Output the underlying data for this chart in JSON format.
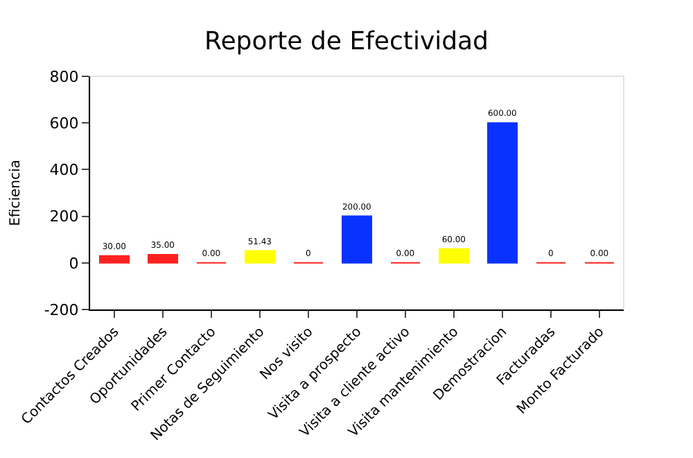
{
  "chart_data": {
    "type": "bar",
    "title": "Reporte de Efectividad",
    "ylabel": "Eficiencia",
    "categories": [
      "Contactos Creados",
      "Oportunidades",
      "Primer Contacto",
      "Notas de Seguimiento",
      "Nos visito",
      "Visita a prospecto",
      "Visita a cliente activo",
      "Visita mantenimiento",
      "Demostracion",
      "Facturadas",
      "Monto Facturado"
    ],
    "values": [
      30,
      35,
      0,
      51.43,
      0,
      200,
      0,
      60,
      600,
      0,
      0
    ],
    "colors": [
      "#ff2020",
      "#ff2020",
      "#ff2020",
      "#ffff00",
      "#ff2020",
      "#0a32ff",
      "#ff2020",
      "#ffff00",
      "#0a32ff",
      "#ff2020",
      "#ff2020"
    ],
    "value_labels": [
      "30.00",
      "35.00",
      "0.00",
      "51.43",
      "0",
      "200.00",
      "0.00",
      "60.00",
      "600.00",
      "0",
      "0.00"
    ],
    "ylim": [
      -200,
      800
    ],
    "yticks": [
      -200,
      0,
      200,
      400,
      600,
      800
    ],
    "grid": false,
    "legend": false
  }
}
